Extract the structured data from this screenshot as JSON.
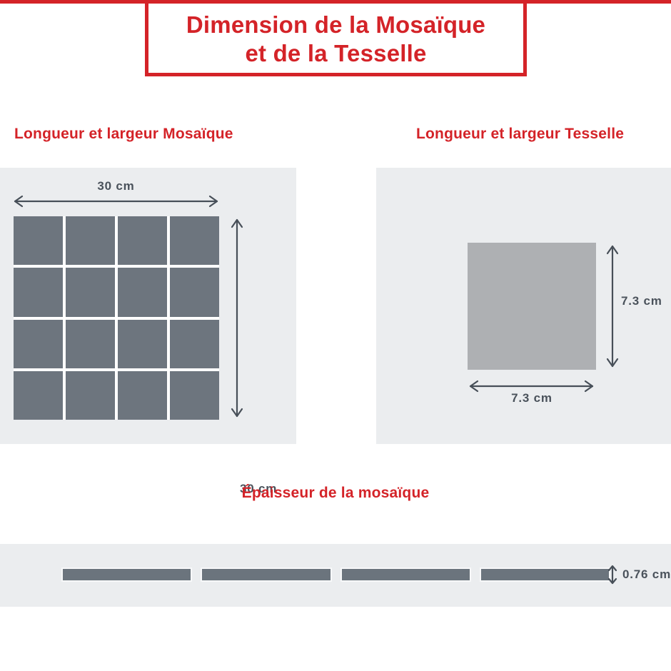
{
  "title": {
    "line1": "Dimension de la Mosaïque",
    "line2": "et de la Tesselle"
  },
  "mosaic": {
    "heading": "Longueur et largeur Mosaïque",
    "width_label": "30 cm",
    "height_label": "30 cm",
    "grid": {
      "rows": 4,
      "cols": 4
    }
  },
  "tessera": {
    "heading": "Longueur et largeur Tesselle",
    "height_label": "7.3 cm",
    "width_label": "7.3 cm"
  },
  "thickness": {
    "heading": "Épaisseur de la mosaïque",
    "value_label": "0.76 cm",
    "strip_count": 4
  },
  "colors": {
    "red": "#d42328",
    "panel_bg": "#ebedef",
    "tile": "#6d757e",
    "tessera": "#aeb0b3",
    "strip": "#6b747d",
    "dim_text": "#4a525b",
    "arrow": "#474f58"
  }
}
